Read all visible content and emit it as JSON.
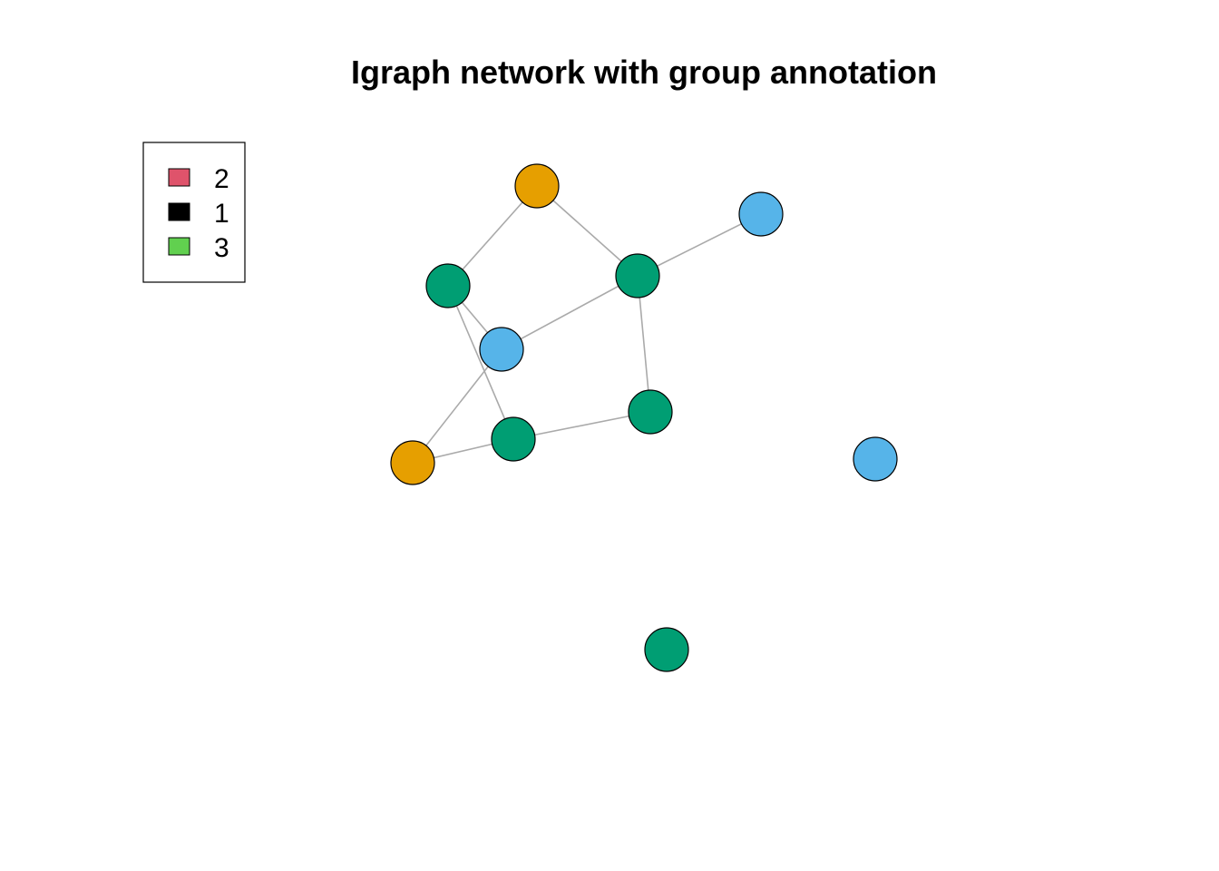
{
  "title": "Igraph network with group annotation",
  "legend": {
    "items": [
      {
        "label": "2",
        "color": "#DF536B"
      },
      {
        "label": "1",
        "color": "#000000"
      },
      {
        "label": "3",
        "color": "#61D04F"
      }
    ]
  },
  "network": {
    "nodes": [
      {
        "id": "n1",
        "color": "#E69F00"
      },
      {
        "id": "n2",
        "color": "#56B4E9"
      },
      {
        "id": "n3",
        "color": "#009E73"
      },
      {
        "id": "n4",
        "color": "#009E73"
      },
      {
        "id": "n5",
        "color": "#56B4E9"
      },
      {
        "id": "n6",
        "color": "#009E73"
      },
      {
        "id": "n7",
        "color": "#009E73"
      },
      {
        "id": "n8",
        "color": "#E69F00"
      },
      {
        "id": "n9",
        "color": "#56B4E9"
      },
      {
        "id": "n10",
        "color": "#009E73"
      }
    ],
    "edges": [
      [
        "n1",
        "n3"
      ],
      [
        "n1",
        "n4"
      ],
      [
        "n4",
        "n2"
      ],
      [
        "n3",
        "n5"
      ],
      [
        "n4",
        "n5"
      ],
      [
        "n4",
        "n6"
      ],
      [
        "n3",
        "n7"
      ],
      [
        "n5",
        "n8"
      ],
      [
        "n8",
        "n7"
      ],
      [
        "n7",
        "n6"
      ]
    ],
    "edge_color": "#AAAAAA",
    "node_border_color": "#000000"
  }
}
